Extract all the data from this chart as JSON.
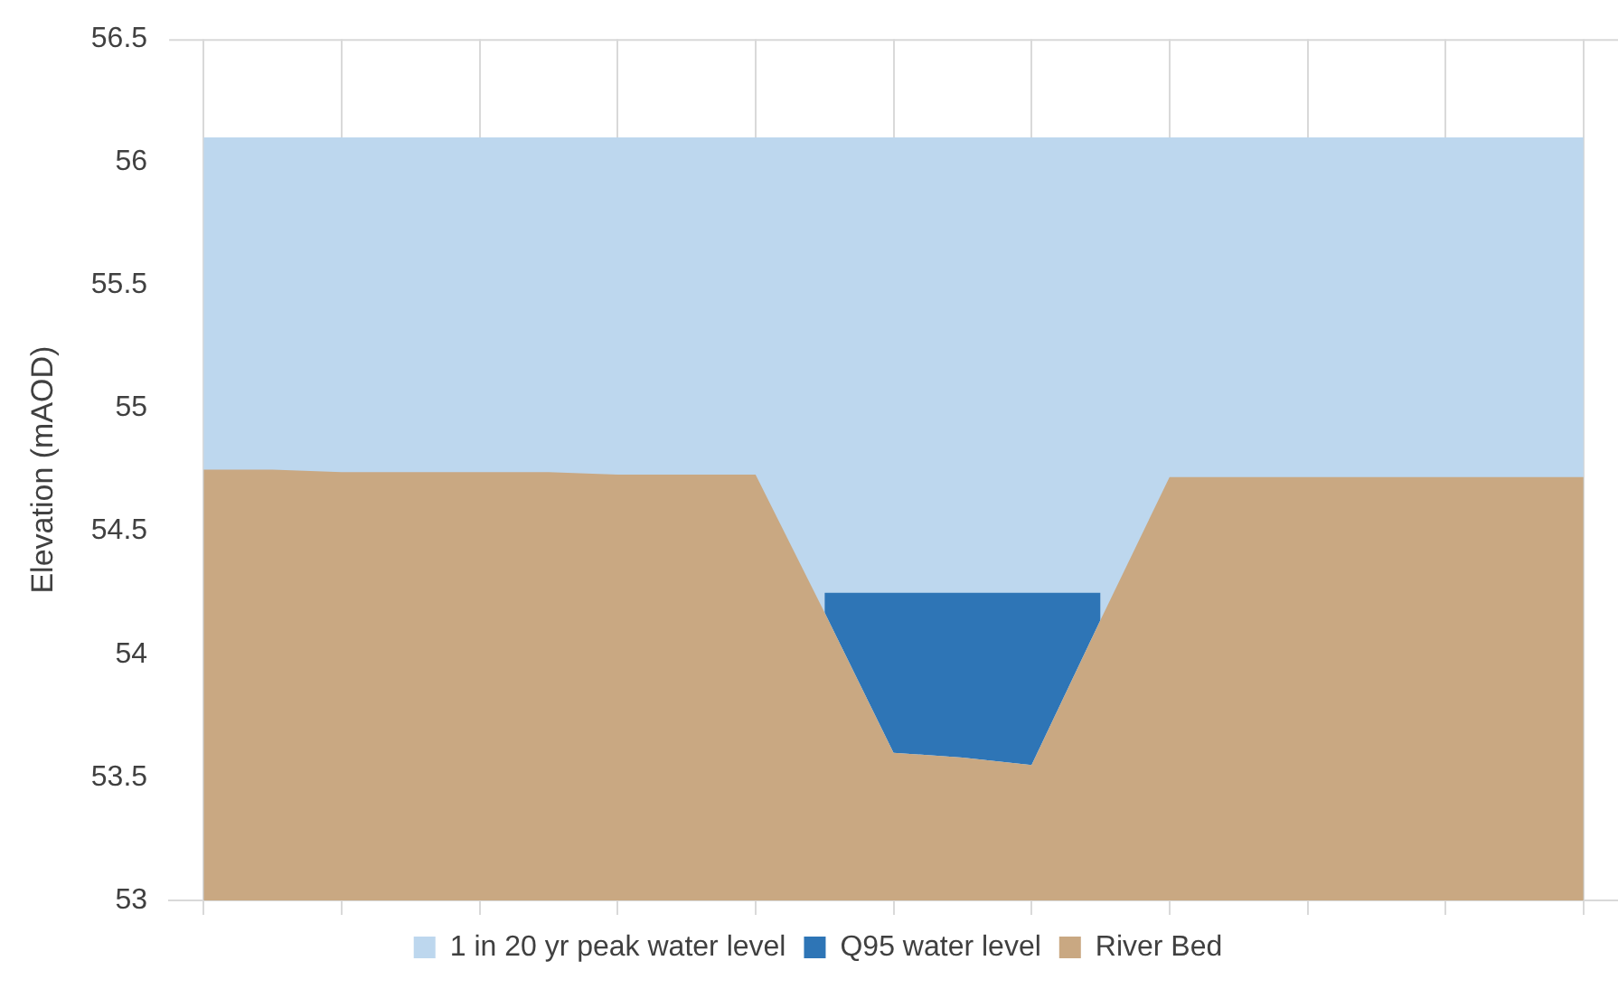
{
  "chart_data": {
    "type": "area",
    "ylabel": "Elevation (mAOD)",
    "categories": [
      null,
      null,
      null,
      null,
      null,
      null,
      null,
      null,
      null,
      null,
      null,
      null,
      null,
      null,
      null,
      null,
      null,
      null,
      null,
      null,
      null
    ],
    "series": [
      {
        "name": "1 in 20 yr peak water level",
        "color": "#bdd7ee",
        "values": [
          56.1,
          56.1,
          56.1,
          56.1,
          56.1,
          56.1,
          56.1,
          56.1,
          56.1,
          56.1,
          56.1,
          56.1,
          56.1,
          56.1,
          56.1,
          56.1,
          56.1,
          56.1,
          56.1,
          56.1,
          56.1
        ]
      },
      {
        "name": "Q95 water level",
        "color": "#2e75b6",
        "values": [
          null,
          null,
          null,
          null,
          null,
          null,
          null,
          null,
          null,
          54.25,
          54.25,
          54.25,
          54.25,
          54.25,
          null,
          null,
          null,
          null,
          null,
          null,
          null
        ]
      },
      {
        "name": "River Bed",
        "color": "#c9a882",
        "values": [
          54.75,
          54.75,
          54.74,
          54.74,
          54.74,
          54.74,
          54.73,
          54.73,
          54.73,
          54.17,
          53.6,
          53.58,
          53.55,
          54.14,
          54.72,
          54.72,
          54.72,
          54.72,
          54.72,
          54.72,
          54.72
        ]
      }
    ],
    "ylim": [
      53,
      56.5
    ],
    "yticks": [
      53,
      53.5,
      54,
      54.5,
      55,
      55.5,
      56,
      56.5
    ],
    "grid": "x",
    "legend": "bottom"
  }
}
